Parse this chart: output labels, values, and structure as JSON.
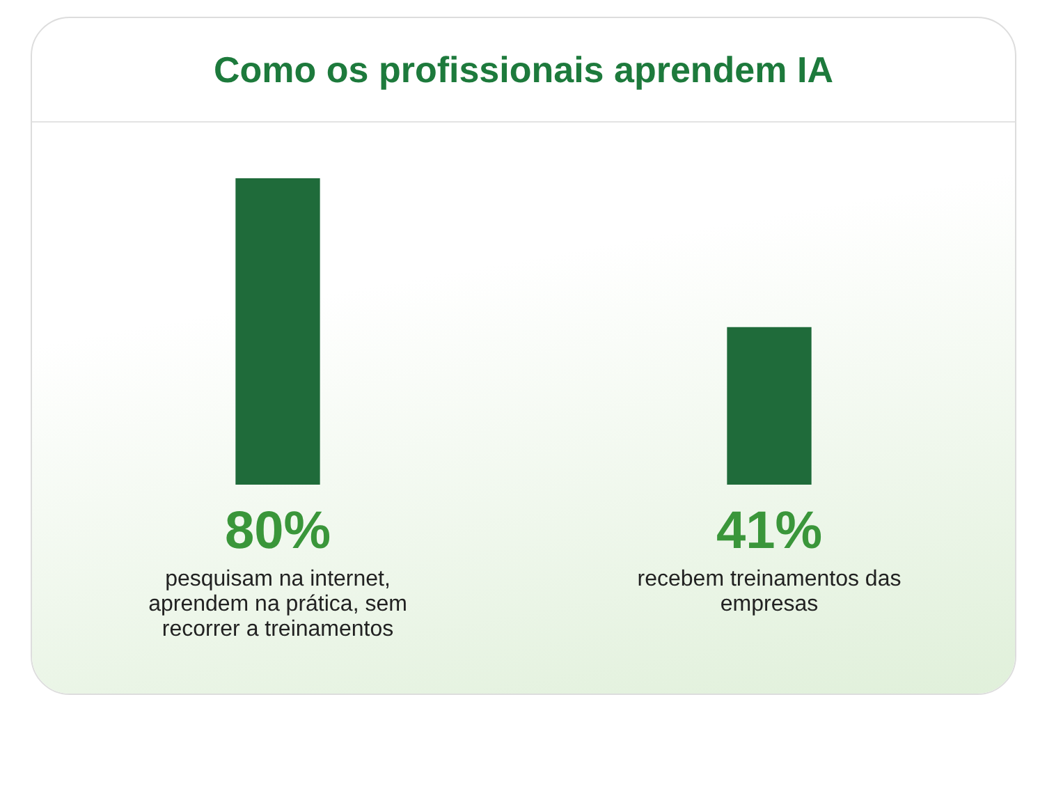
{
  "chart_data": {
    "type": "bar",
    "title": "Como os profissionais aprendem IA",
    "categories": [
      "pesquisam na internet, aprendem na prática, sem recorrer a treinamentos",
      "recebem treinamentos das empresas"
    ],
    "values": [
      80,
      41
    ],
    "value_labels": [
      "80%",
      "41%"
    ],
    "color": "#1f6b3a",
    "tick_labels": false
  }
}
